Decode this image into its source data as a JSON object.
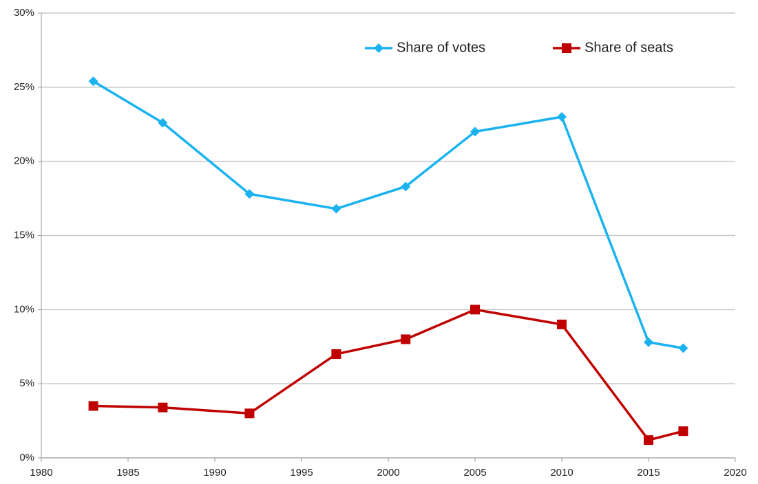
{
  "chart_data": {
    "type": "line",
    "x": [
      1983,
      1987,
      1992,
      1997,
      2001,
      2005,
      2010,
      2015,
      2017
    ],
    "series": [
      {
        "name": "Share of votes",
        "color": "#1ab2f0",
        "marker": "diamond",
        "values": [
          25.4,
          22.6,
          17.8,
          16.8,
          18.3,
          22.0,
          23.0,
          7.8,
          7.4
        ]
      },
      {
        "name": "Share of seats",
        "color": "#c00000",
        "marker": "square",
        "values": [
          3.5,
          3.4,
          3.0,
          7.0,
          8.0,
          10.0,
          9.0,
          1.2,
          1.8
        ]
      }
    ],
    "xlim": [
      1980,
      2020
    ],
    "xticks": [
      1980,
      1985,
      1990,
      1995,
      2000,
      2005,
      2010,
      2015,
      2020
    ],
    "ylim": [
      0,
      30
    ],
    "yticks": [
      {
        "value": 0,
        "label": "0%"
      },
      {
        "value": 5,
        "label": "5%"
      },
      {
        "value": 10,
        "label": "10%"
      },
      {
        "value": 15,
        "label": "15%"
      },
      {
        "value": 20,
        "label": "20%"
      },
      {
        "value": 25,
        "label": "25%"
      },
      {
        "value": 30,
        "label": "30%"
      }
    ],
    "grid": true,
    "legend": "top-right"
  }
}
